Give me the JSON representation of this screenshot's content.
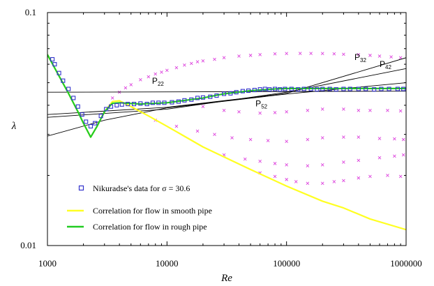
{
  "chart_data": {
    "type": "scatter",
    "xscale": "log",
    "yscale": "log",
    "xlim": [
      1000,
      1000000
    ],
    "ylim": [
      0.01,
      0.1
    ],
    "xlabel": "Re",
    "ylabel": "λ",
    "x_ticks": [
      "1000",
      "10000",
      "100000",
      "1000000"
    ],
    "y_ticks": [
      "0.01",
      "0.1"
    ],
    "grid": false,
    "legend_position": "bottom-left",
    "colors": {
      "nikuradse_marker": "#3333cc",
      "cross_marker": "#dd44dd",
      "smooth": "#ffff22",
      "rough": "#22cc22",
      "polynomial": "#000000"
    },
    "legend": [
      {
        "label": "Nikuradse's data for σ = 30.6",
        "kind": "square-marker",
        "color": "#3333cc"
      },
      {
        "label": "Correlation for flow in smooth pipe",
        "kind": "line",
        "color": "#ffff22"
      },
      {
        "label": "Correlation for flow in rough pipe",
        "kind": "line",
        "color": "#22cc22"
      }
    ],
    "annotations": [
      {
        "main": "P",
        "sub": "32",
        "x": 370000,
        "y": 0.0625
      },
      {
        "main": "P",
        "sub": "42",
        "x": 600000,
        "y": 0.0585
      },
      {
        "main": "P",
        "sub": "22",
        "x": 7500,
        "y": 0.0495
      },
      {
        "main": "P",
        "sub": "52",
        "x": 55000,
        "y": 0.0395
      }
    ],
    "series": [
      {
        "name": "Nikuradse's data for σ = 30.6",
        "style": "square-marker",
        "points": [
          [
            1100,
            0.063
          ],
          [
            1150,
            0.06
          ],
          [
            1250,
            0.055
          ],
          [
            1350,
            0.051
          ],
          [
            1500,
            0.047
          ],
          [
            1650,
            0.043
          ],
          [
            1800,
            0.0395
          ],
          [
            1950,
            0.0365
          ],
          [
            2100,
            0.034
          ],
          [
            2300,
            0.0325
          ],
          [
            2500,
            0.0335
          ],
          [
            2800,
            0.036
          ],
          [
            3100,
            0.0385
          ],
          [
            3400,
            0.0395
          ],
          [
            3800,
            0.04
          ],
          [
            4200,
            0.0403
          ],
          [
            4700,
            0.0405
          ],
          [
            5300,
            0.0405
          ],
          [
            6000,
            0.0407
          ],
          [
            6800,
            0.0405
          ],
          [
            7600,
            0.041
          ],
          [
            8500,
            0.041
          ],
          [
            9500,
            0.041
          ],
          [
            11000,
            0.0412
          ],
          [
            12500,
            0.0415
          ],
          [
            14000,
            0.042
          ],
          [
            16000,
            0.0423
          ],
          [
            18000,
            0.043
          ],
          [
            20000,
            0.0432
          ],
          [
            23000,
            0.0435
          ],
          [
            26000,
            0.044
          ],
          [
            30000,
            0.0448
          ],
          [
            34000,
            0.045
          ],
          [
            38000,
            0.0455
          ],
          [
            43000,
            0.046
          ],
          [
            48000,
            0.0462
          ],
          [
            54000,
            0.0465
          ],
          [
            60000,
            0.0468
          ],
          [
            66000,
            0.047
          ],
          [
            72000,
            0.0468
          ],
          [
            80000,
            0.047
          ],
          [
            88000,
            0.0468
          ],
          [
            97000,
            0.047
          ],
          [
            110000,
            0.047
          ],
          [
            125000,
            0.0468
          ],
          [
            140000,
            0.047
          ],
          [
            160000,
            0.047
          ],
          [
            180000,
            0.0468
          ],
          [
            200000,
            0.047
          ],
          [
            230000,
            0.047
          ],
          [
            260000,
            0.0468
          ],
          [
            300000,
            0.047
          ],
          [
            340000,
            0.047
          ],
          [
            400000,
            0.047
          ],
          [
            460000,
            0.047
          ],
          [
            540000,
            0.0468
          ],
          [
            620000,
            0.047
          ],
          [
            720000,
            0.047
          ],
          [
            850000,
            0.047
          ],
          [
            950000,
            0.047
          ]
        ]
      },
      {
        "name": "Correlation for flow in smooth pipe",
        "style": "line",
        "points": [
          [
            1000,
            0.066
          ],
          [
            1200,
            0.0555
          ],
          [
            1500,
            0.045
          ],
          [
            1800,
            0.0375
          ],
          [
            2000,
            0.0335
          ],
          [
            2200,
            0.0305
          ],
          [
            2300,
            0.0292
          ],
          [
            2600,
            0.0325
          ],
          [
            3000,
            0.0375
          ],
          [
            3500,
            0.0415
          ],
          [
            4000,
            0.0418
          ],
          [
            5000,
            0.0395
          ],
          [
            7000,
            0.036
          ],
          [
            10000,
            0.0325
          ],
          [
            20000,
            0.0265
          ],
          [
            30000,
            0.024
          ],
          [
            50000,
            0.0212
          ],
          [
            100000,
            0.018
          ],
          [
            200000,
            0.0155
          ],
          [
            300000,
            0.0145
          ],
          [
            500000,
            0.013
          ],
          [
            1000000,
            0.0117
          ]
        ]
      },
      {
        "name": "Correlation for flow in rough pipe",
        "style": "line",
        "points": [
          [
            1000,
            0.066
          ],
          [
            1200,
            0.0555
          ],
          [
            1500,
            0.045
          ],
          [
            1800,
            0.0375
          ],
          [
            2000,
            0.0335
          ],
          [
            2200,
            0.0305
          ],
          [
            2300,
            0.0292
          ],
          [
            2600,
            0.0325
          ],
          [
            3000,
            0.0375
          ],
          [
            3500,
            0.0408
          ],
          [
            4000,
            0.041
          ],
          [
            6000,
            0.0405
          ],
          [
            10000,
            0.041
          ],
          [
            20000,
            0.043
          ],
          [
            30000,
            0.0448
          ],
          [
            50000,
            0.0462
          ],
          [
            80000,
            0.047
          ],
          [
            100000,
            0.0472
          ],
          [
            200000,
            0.0472
          ],
          [
            500000,
            0.0472
          ],
          [
            1000000,
            0.0472
          ]
        ]
      },
      {
        "name": "P22",
        "style": "thin-line",
        "points": [
          [
            1000,
            0.0455
          ],
          [
            1000000,
            0.046
          ]
        ]
      },
      {
        "name": "P32",
        "style": "thin-line",
        "points": [
          [
            1000,
            0.0365
          ],
          [
            10000,
            0.0392
          ],
          [
            100000,
            0.045
          ],
          [
            1000000,
            0.064
          ]
        ]
      },
      {
        "name": "P42",
        "style": "thin-line",
        "points": [
          [
            1000,
            0.0355
          ],
          [
            10000,
            0.0385
          ],
          [
            100000,
            0.0455
          ],
          [
            1000000,
            0.0575
          ]
        ]
      },
      {
        "name": "P52",
        "style": "thin-line",
        "points": [
          [
            1000,
            0.0295
          ],
          [
            3000,
            0.0345
          ],
          [
            10000,
            0.039
          ],
          [
            100000,
            0.0447
          ],
          [
            1000000,
            0.05
          ]
        ]
      },
      {
        "name": "roughness data 1",
        "style": "cross-marker",
        "points": [
          [
            3500,
            0.043
          ],
          [
            4000,
            0.0455
          ],
          [
            4500,
            0.0475
          ],
          [
            5000,
            0.049
          ],
          [
            6000,
            0.0515
          ],
          [
            7000,
            0.053
          ],
          [
            8000,
            0.0545
          ],
          [
            9000,
            0.0555
          ],
          [
            10000,
            0.0565
          ],
          [
            12000,
            0.058
          ],
          [
            14000,
            0.0595
          ],
          [
            16000,
            0.0605
          ],
          [
            18000,
            0.0615
          ],
          [
            20000,
            0.062
          ],
          [
            25000,
            0.063
          ],
          [
            30000,
            0.064
          ],
          [
            40000,
            0.065
          ],
          [
            50000,
            0.0655
          ],
          [
            60000,
            0.066
          ],
          [
            80000,
            0.0665
          ],
          [
            100000,
            0.0667
          ],
          [
            130000,
            0.0668
          ],
          [
            160000,
            0.0668
          ],
          [
            200000,
            0.0667
          ],
          [
            250000,
            0.0665
          ],
          [
            300000,
            0.0662
          ],
          [
            400000,
            0.066
          ],
          [
            500000,
            0.0655
          ],
          [
            600000,
            0.065
          ],
          [
            750000,
            0.0645
          ],
          [
            900000,
            0.064
          ]
        ]
      },
      {
        "name": "roughness data 2",
        "style": "cross-marker",
        "points": [
          [
            20000,
            0.0395
          ],
          [
            30000,
            0.038
          ],
          [
            40000,
            0.0375
          ],
          [
            60000,
            0.037
          ],
          [
            80000,
            0.0372
          ],
          [
            100000,
            0.0375
          ],
          [
            150000,
            0.038
          ],
          [
            200000,
            0.0385
          ],
          [
            300000,
            0.0385
          ],
          [
            400000,
            0.038
          ],
          [
            500000,
            0.038
          ],
          [
            700000,
            0.038
          ],
          [
            900000,
            0.0378
          ]
        ]
      },
      {
        "name": "roughness data 3",
        "style": "cross-marker",
        "points": [
          [
            8000,
            0.0345
          ],
          [
            12000,
            0.0325
          ],
          [
            18000,
            0.031
          ],
          [
            25000,
            0.03
          ],
          [
            35000,
            0.029
          ],
          [
            50000,
            0.0285
          ],
          [
            70000,
            0.0282
          ],
          [
            100000,
            0.028
          ],
          [
            150000,
            0.0285
          ],
          [
            200000,
            0.029
          ],
          [
            300000,
            0.0292
          ],
          [
            400000,
            0.0292
          ],
          [
            600000,
            0.0288
          ],
          [
            800000,
            0.0287
          ],
          [
            950000,
            0.0285
          ]
        ]
      },
      {
        "name": "roughness data 4",
        "style": "cross-marker",
        "points": [
          [
            30000,
            0.0245
          ],
          [
            45000,
            0.0235
          ],
          [
            60000,
            0.023
          ],
          [
            80000,
            0.0225
          ],
          [
            100000,
            0.0222
          ],
          [
            150000,
            0.022
          ],
          [
            200000,
            0.0222
          ],
          [
            300000,
            0.0228
          ],
          [
            400000,
            0.0232
          ],
          [
            600000,
            0.0238
          ],
          [
            800000,
            0.0242
          ],
          [
            950000,
            0.0245
          ]
        ]
      },
      {
        "name": "roughness data 5",
        "style": "cross-marker",
        "points": [
          [
            60000,
            0.0205
          ],
          [
            80000,
            0.0198
          ],
          [
            100000,
            0.0192
          ],
          [
            120000,
            0.0188
          ],
          [
            150000,
            0.0185
          ],
          [
            200000,
            0.0185
          ],
          [
            250000,
            0.0188
          ],
          [
            300000,
            0.019
          ],
          [
            400000,
            0.0195
          ],
          [
            500000,
            0.0198
          ],
          [
            700000,
            0.02
          ],
          [
            900000,
            0.0198
          ]
        ]
      }
    ]
  }
}
